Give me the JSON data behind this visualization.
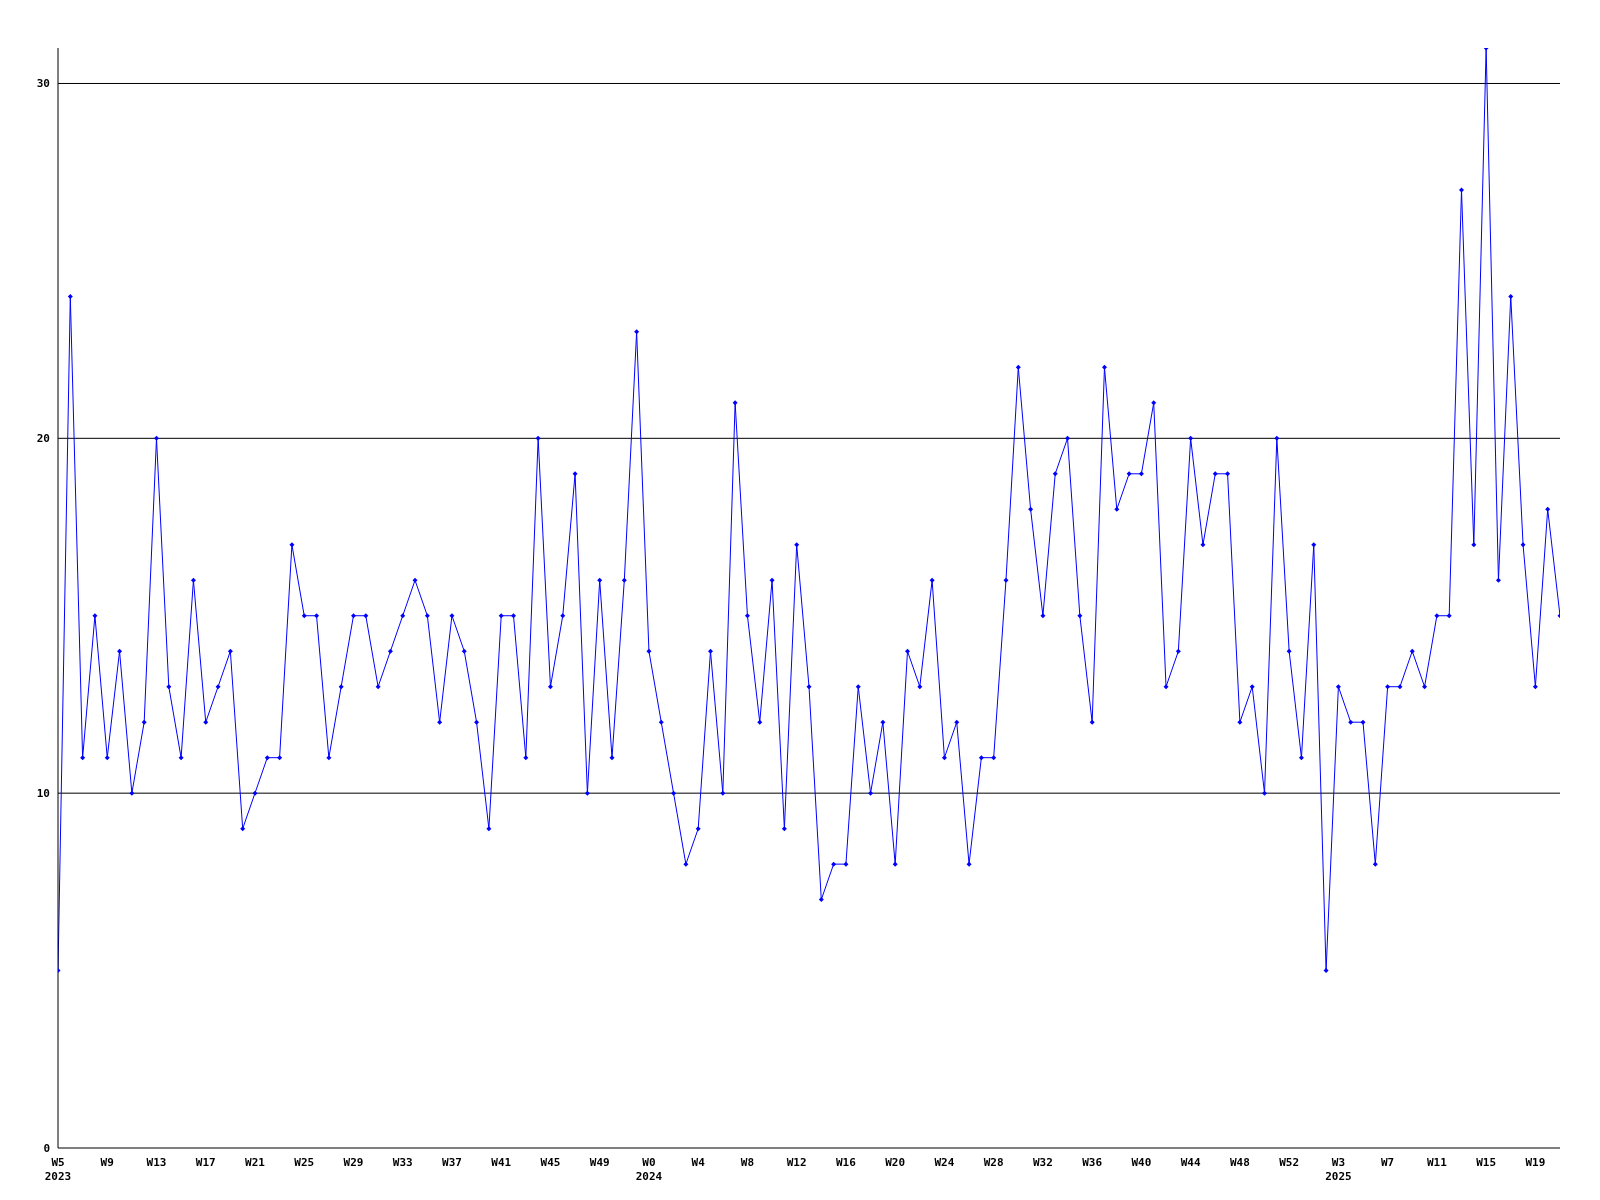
{
  "chart_data": {
    "type": "line",
    "categories": [
      "W5\n2023",
      null,
      null,
      null,
      "W9",
      null,
      null,
      null,
      "W13",
      null,
      null,
      null,
      "W17",
      null,
      null,
      null,
      "W21",
      null,
      null,
      null,
      "W25",
      null,
      null,
      null,
      "W29",
      null,
      null,
      null,
      "W33",
      null,
      null,
      null,
      "W37",
      null,
      null,
      null,
      "W41",
      null,
      null,
      null,
      "W45",
      null,
      null,
      null,
      "W49",
      null,
      null,
      null,
      "W0\n2024",
      null,
      null,
      null,
      "W4",
      null,
      null,
      null,
      "W8",
      null,
      null,
      null,
      "W12",
      null,
      null,
      null,
      "W16",
      null,
      null,
      null,
      "W20",
      null,
      null,
      null,
      "W24",
      null,
      null,
      null,
      "W28",
      null,
      null,
      null,
      "W32",
      null,
      null,
      null,
      "W36",
      null,
      null,
      null,
      "W40",
      null,
      null,
      null,
      "W44",
      null,
      null,
      null,
      "W48",
      null,
      null,
      null,
      "W52",
      null,
      null,
      null,
      "W3\n2025",
      null,
      null,
      null,
      "W7",
      null,
      null,
      null,
      "W11",
      null,
      null,
      null,
      "W15",
      null,
      null,
      null,
      "W19",
      null,
      null
    ],
    "series": [
      {
        "color": "#0000ff",
        "values": [
          5,
          24,
          11,
          15,
          11,
          14,
          10,
          12,
          20,
          13,
          11,
          16,
          12,
          13,
          14,
          9,
          10,
          11,
          11,
          17,
          15,
          15,
          11,
          13,
          15,
          15,
          13,
          14,
          15,
          16,
          15,
          12,
          15,
          14,
          12,
          9,
          15,
          15,
          11,
          20,
          13,
          15,
          19,
          10,
          16,
          11,
          16,
          23,
          14,
          12,
          10,
          8,
          9,
          14,
          10,
          21,
          15,
          12,
          16,
          9,
          17,
          13,
          7,
          8,
          8,
          13,
          10,
          12,
          8,
          14,
          13,
          16,
          11,
          12,
          8,
          11,
          11,
          16,
          22,
          18,
          15,
          19,
          20,
          15,
          12,
          22,
          18,
          19,
          19,
          21,
          13,
          14,
          20,
          17,
          19,
          19,
          12,
          13,
          10,
          20,
          14,
          11,
          17,
          5,
          13,
          12,
          12,
          8,
          13,
          13,
          14,
          13,
          15,
          15,
          27,
          17,
          31,
          16,
          24,
          17,
          13,
          18,
          15
        ]
      }
    ],
    "ylim": [
      0,
      31
    ],
    "yticks": [
      0,
      10,
      20,
      30
    ],
    "grid": "y",
    "marker": "diamond",
    "line_style": "solid"
  }
}
